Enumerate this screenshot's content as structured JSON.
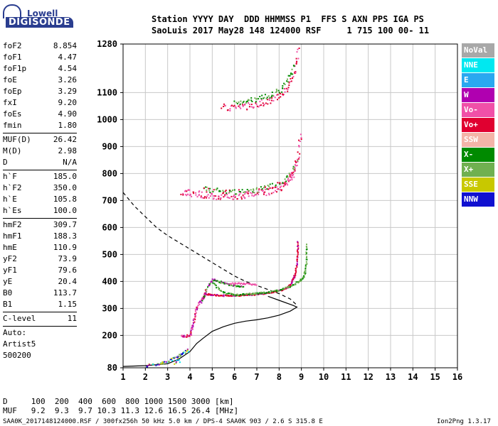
{
  "logo": {
    "top": "Lowell",
    "bottom": "DIGISONDE"
  },
  "header": {
    "line1": "Station YYYY DAY  DDD HHMMSS P1  FFS S AXN PPS IGA PS",
    "line2": "SaoLuis 2017 May28 148 124000 RSF     1 715 100 00- 11"
  },
  "params": {
    "group1": [
      {
        "name": "foF2",
        "value": "8.854"
      },
      {
        "name": "foF1",
        "value": "4.47"
      },
      {
        "name": "foF1p",
        "value": "4.54"
      },
      {
        "name": "foE",
        "value": "3.26"
      },
      {
        "name": "foEp",
        "value": "3.29"
      },
      {
        "name": "fxI",
        "value": "9.20"
      },
      {
        "name": "foEs",
        "value": "4.90"
      },
      {
        "name": "fmin",
        "value": "1.80"
      }
    ],
    "group2": [
      {
        "name": "MUF(D)",
        "value": "26.42"
      },
      {
        "name": "M(D)",
        "value": "2.98"
      },
      {
        "name": "D",
        "value": "N/A"
      }
    ],
    "group3": [
      {
        "name": "h`F",
        "value": "185.0"
      },
      {
        "name": "h`F2",
        "value": "350.0"
      },
      {
        "name": "h`E",
        "value": "105.8"
      },
      {
        "name": "h`Es",
        "value": "100.0"
      }
    ],
    "group4": [
      {
        "name": "hmF2",
        "value": "309.7"
      },
      {
        "name": "hmF1",
        "value": "188.3"
      },
      {
        "name": "hmE",
        "value": "110.9"
      },
      {
        "name": "yF2",
        "value": "73.9"
      },
      {
        "name": "yF1",
        "value": "79.6"
      },
      {
        "name": "yE",
        "value": "20.4"
      },
      {
        "name": "B0",
        "value": "113.7"
      },
      {
        "name": "B1",
        "value": "1.15"
      }
    ],
    "group5": [
      {
        "name": "C-level",
        "value": "11"
      }
    ],
    "auto_lines": [
      "Auto:",
      "Artist5",
      "500200"
    ]
  },
  "legend": [
    {
      "label": "NoVal",
      "color": "#a8a8a8"
    },
    {
      "label": "NNE",
      "color": "#00e8f0"
    },
    {
      "label": "E",
      "color": "#2aa8f0"
    },
    {
      "label": "W",
      "color": "#b000b0"
    },
    {
      "label": "Vo-",
      "color": "#f050a8"
    },
    {
      "label": "Vo+",
      "color": "#e00030"
    },
    {
      "label": "SSW",
      "color": "#f4b4a8"
    },
    {
      "label": "X-",
      "color": "#008a00"
    },
    {
      "label": "X+",
      "color": "#70b050"
    },
    {
      "label": "SSE",
      "color": "#c8c800"
    },
    {
      "label": "NNW",
      "color": "#1010d0"
    }
  ],
  "footer": {
    "d_line": "D     100  200  400  600  800 1000 1500 3000 [km]",
    "muf_line": "MUF   9.2  9.3  9.7 10.3 11.3 12.6 16.5 26.4 [MHz]",
    "file_line": "SAA0K_2017148124000.RSF / 300fx256h 50 kHz 5.0 km / DPS-4 SAA0K 903 / 2.6 S 315.8 E",
    "version": "Ion2Png 1.3.17"
  },
  "chart_data": {
    "type": "scatter",
    "xlim": [
      1,
      16
    ],
    "ylim": [
      80,
      1280
    ],
    "x_ticks": [
      "1",
      "2",
      "3",
      "4",
      "5",
      "6",
      "7",
      "8",
      "9",
      "10",
      "11",
      "12",
      "13",
      "14",
      "15",
      "16"
    ],
    "y_ticks": [
      "80",
      "200",
      "300",
      "400",
      "500",
      "600",
      "700",
      "800",
      "900",
      "1000",
      "1100",
      "1280"
    ],
    "grid": true,
    "true_height_profile": [
      [
        1.0,
        85
      ],
      [
        2.0,
        88
      ],
      [
        3.0,
        95
      ],
      [
        3.5,
        112
      ],
      [
        4.0,
        140
      ],
      [
        4.3,
        170
      ],
      [
        4.6,
        190
      ],
      [
        5.0,
        215
      ],
      [
        5.5,
        232
      ],
      [
        6.0,
        245
      ],
      [
        6.5,
        253
      ],
      [
        7.0,
        258
      ],
      [
        7.5,
        265
      ],
      [
        8.0,
        275
      ],
      [
        8.5,
        290
      ],
      [
        8.8,
        305
      ],
      [
        8.6,
        312
      ],
      [
        8.0,
        330
      ],
      [
        7.5,
        345
      ]
    ],
    "dashed_profile": [
      [
        1.0,
        730
      ],
      [
        1.5,
        680
      ],
      [
        2.0,
        640
      ],
      [
        2.5,
        600
      ],
      [
        3.0,
        570
      ],
      [
        3.5,
        545
      ],
      [
        4.0,
        520
      ],
      [
        4.5,
        495
      ],
      [
        5.0,
        470
      ],
      [
        5.5,
        445
      ],
      [
        6.0,
        420
      ],
      [
        6.5,
        400
      ],
      [
        7.0,
        385
      ],
      [
        7.5,
        370
      ],
      [
        8.0,
        355
      ],
      [
        8.5,
        335
      ],
      [
        8.8,
        312
      ]
    ],
    "o_trace_f1": [
      [
        3.6,
        200
      ],
      [
        3.8,
        198
      ],
      [
        4.0,
        205
      ],
      [
        4.1,
        240
      ],
      [
        4.2,
        275
      ],
      [
        4.3,
        310
      ],
      [
        4.5,
        335
      ],
      [
        4.6,
        345
      ],
      [
        4.7,
        375
      ]
    ],
    "o_trace_f2": [
      [
        4.7,
        355
      ],
      [
        5.0,
        352
      ],
      [
        5.5,
        350
      ],
      [
        6.0,
        350
      ],
      [
        6.5,
        352
      ],
      [
        7.0,
        355
      ],
      [
        7.5,
        360
      ],
      [
        8.0,
        368
      ],
      [
        8.3,
        378
      ],
      [
        8.5,
        392
      ],
      [
        8.7,
        430
      ],
      [
        8.8,
        490
      ],
      [
        8.82,
        555
      ]
    ],
    "x_trace_f2": [
      [
        5.0,
        395
      ],
      [
        5.5,
        360
      ],
      [
        6.0,
        352
      ],
      [
        6.5,
        355
      ],
      [
        7.0,
        358
      ],
      [
        7.5,
        362
      ],
      [
        8.0,
        370
      ],
      [
        8.5,
        385
      ],
      [
        8.9,
        405
      ],
      [
        9.1,
        420
      ],
      [
        9.2,
        470
      ],
      [
        9.2,
        545
      ]
    ],
    "w_trace": [
      [
        4.5,
        325
      ],
      [
        4.8,
        385
      ],
      [
        5.0,
        410
      ],
      [
        5.2,
        405
      ],
      [
        5.5,
        395
      ],
      [
        5.8,
        390
      ],
      [
        6.1,
        385
      ],
      [
        6.4,
        382
      ]
    ],
    "vo_trace": [
      [
        5.8,
        395
      ],
      [
        6.2,
        395
      ],
      [
        6.6,
        393
      ],
      [
        7.0,
        390
      ]
    ],
    "echo2_o": [
      [
        3.6,
        735
      ],
      [
        4.0,
        730
      ],
      [
        4.5,
        725
      ],
      [
        5.0,
        720
      ],
      [
        5.5,
        718
      ],
      [
        6.0,
        720
      ],
      [
        6.5,
        722
      ],
      [
        7.0,
        728
      ],
      [
        7.5,
        735
      ],
      [
        8.0,
        748
      ],
      [
        8.4,
        770
      ],
      [
        8.6,
        800
      ],
      [
        8.8,
        850
      ],
      [
        8.95,
        950
      ]
    ],
    "echo2_x": [
      [
        4.6,
        745
      ],
      [
        5.0,
        740
      ],
      [
        5.5,
        735
      ],
      [
        6.0,
        732
      ],
      [
        6.5,
        735
      ],
      [
        7.0,
        742
      ],
      [
        7.5,
        752
      ],
      [
        8.0,
        765
      ],
      [
        8.5,
        800
      ],
      [
        8.8,
        860
      ]
    ],
    "echo3_o": [
      [
        5.4,
        1050
      ],
      [
        6.0,
        1045
      ],
      [
        6.5,
        1050
      ],
      [
        7.0,
        1060
      ],
      [
        7.5,
        1070
      ],
      [
        8.0,
        1090
      ],
      [
        8.4,
        1120
      ],
      [
        8.7,
        1180
      ],
      [
        8.85,
        1270
      ]
    ],
    "echo3_x": [
      [
        6.0,
        1065
      ],
      [
        6.5,
        1070
      ],
      [
        7.0,
        1080
      ],
      [
        7.5,
        1090
      ],
      [
        8.0,
        1110
      ],
      [
        8.4,
        1150
      ],
      [
        8.7,
        1210
      ]
    ],
    "es_points": [
      [
        2.0,
        90
      ],
      [
        2.3,
        92
      ],
      [
        2.6,
        95
      ],
      [
        2.8,
        100
      ],
      [
        3.0,
        108
      ],
      [
        3.2,
        115
      ],
      [
        3.4,
        120
      ],
      [
        3.5,
        130
      ],
      [
        3.7,
        138
      ],
      [
        3.9,
        150
      ],
      [
        3.3,
        100
      ],
      [
        3.6,
        115
      ]
    ]
  }
}
